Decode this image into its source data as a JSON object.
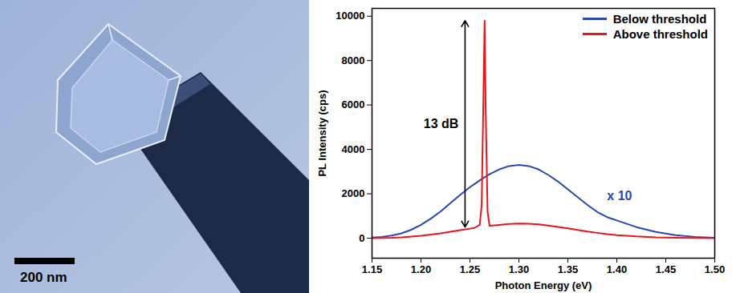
{
  "image": {
    "scale_bar": "200 nm"
  },
  "chart_data": {
    "type": "line",
    "x_label": "Photon Energy (eV)",
    "y_label": "PL Intensity (cps)",
    "x": [
      1.15,
      1.16,
      1.17,
      1.18,
      1.19,
      1.2,
      1.21,
      1.22,
      1.23,
      1.24,
      1.25,
      1.255,
      1.26,
      1.262,
      1.264,
      1.265,
      1.266,
      1.268,
      1.27,
      1.28,
      1.29,
      1.3,
      1.31,
      1.32,
      1.33,
      1.34,
      1.35,
      1.36,
      1.37,
      1.38,
      1.39,
      1.4,
      1.42,
      1.44,
      1.46,
      1.48,
      1.5
    ],
    "series": [
      {
        "name": "Below threshold",
        "color": "#2846b4",
        "values": [
          30,
          60,
          120,
          220,
          380,
          600,
          880,
          1200,
          1580,
          1950,
          2300,
          2450,
          2600,
          2660,
          2720,
          2750,
          2770,
          2830,
          2880,
          3100,
          3250,
          3300,
          3250,
          3100,
          2850,
          2550,
          2200,
          1850,
          1500,
          1180,
          950,
          800,
          500,
          280,
          140,
          60,
          20
        ]
      },
      {
        "name": "Above threshold",
        "color": "#e8141a",
        "values": [
          0,
          10,
          20,
          40,
          70,
          110,
          160,
          220,
          290,
          360,
          430,
          470,
          600,
          1500,
          7000,
          9800,
          6000,
          1200,
          560,
          600,
          640,
          660,
          650,
          620,
          570,
          510,
          440,
          370,
          300,
          240,
          180,
          140,
          80,
          40,
          20,
          10,
          5
        ]
      }
    ],
    "xlim": [
      1.15,
      1.5
    ],
    "xticks": [
      1.15,
      {
        "value": 1.2,
        "label": "1.20"
      },
      1.25,
      {
        "value": 1.3,
        "label": "1.30"
      },
      1.35,
      {
        "value": 1.4,
        "label": "1.40"
      },
      1.45,
      {
        "value": 1.5,
        "label": "1.50"
      }
    ],
    "ylim": [
      -900,
      10350
    ],
    "yticks": [
      0,
      2000,
      4000,
      6000,
      8000,
      10000
    ],
    "grid": false,
    "legend": "upper right",
    "annotations": [
      {
        "text": "13 dB",
        "x": 1.245,
        "y_from": 500,
        "y_to": 9800
      },
      {
        "text": "x 10",
        "x": 1.39,
        "y": 1900,
        "color": "#2846b4"
      }
    ]
  }
}
